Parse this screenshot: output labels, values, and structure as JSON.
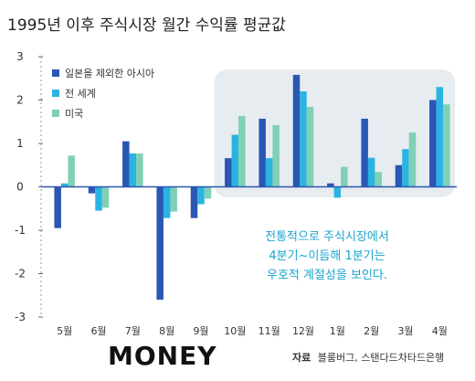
{
  "title": "1995년 이후 주식시장 월간 수익률 평균값",
  "brand": "MONEY",
  "source": {
    "label": "자료",
    "text": "블룸버그, 스탠다드차타드은행"
  },
  "annotation": [
    "전통적으로 주식시장에서",
    "4분기~이듬해 1분기는",
    "우호적 계절성을 보인다."
  ],
  "colors": {
    "asia_ex_japan": "#2a56b4",
    "world": "#2bb3e2",
    "us": "#7fd0b4",
    "highlight_box": "#e6ecef",
    "annotation": "#1aa4cc",
    "zero_line": "#2a56b4"
  },
  "chart_data": {
    "type": "bar",
    "categories": [
      "5월",
      "6월",
      "7월",
      "8월",
      "9월",
      "10월",
      "11월",
      "12월",
      "1월",
      "2월",
      "3월",
      "4월"
    ],
    "series": [
      {
        "name": "일본을 제외한 아시아",
        "values": [
          -0.95,
          -0.15,
          1.05,
          -2.6,
          -0.72,
          0.66,
          1.57,
          2.58,
          0.08,
          1.57,
          0.5,
          2.0
        ]
      },
      {
        "name": "전 세계",
        "values": [
          0.08,
          -0.55,
          0.77,
          -0.72,
          -0.4,
          1.2,
          0.66,
          2.2,
          -0.25,
          0.67,
          0.87,
          2.3
        ]
      },
      {
        "name": "미국",
        "values": [
          0.72,
          -0.48,
          0.77,
          -0.57,
          -0.27,
          1.63,
          1.42,
          1.84,
          0.46,
          0.34,
          1.25,
          1.9
        ]
      }
    ],
    "ylim": [
      -3,
      3
    ],
    "yticks": [
      "3",
      "2",
      "1",
      "0",
      "-1",
      "-2",
      "-3"
    ],
    "ytick_values": [
      3,
      2,
      1,
      0,
      -1,
      -2,
      -3
    ],
    "grid": false,
    "legend_position": "top-left",
    "highlight": {
      "from": "10월",
      "to": "4월"
    }
  }
}
